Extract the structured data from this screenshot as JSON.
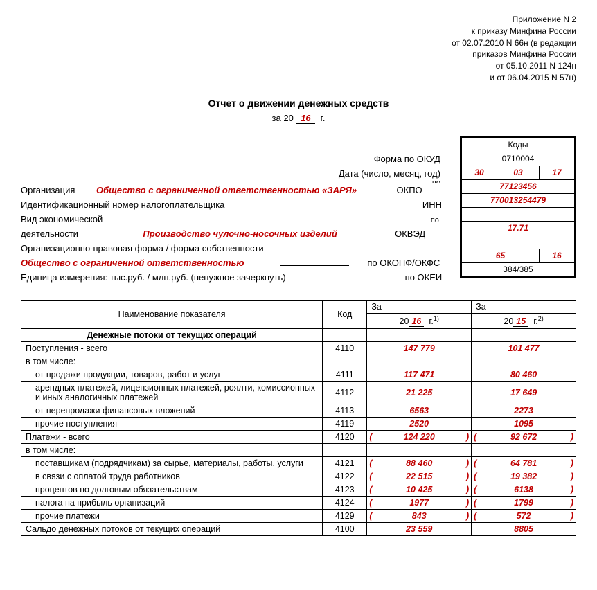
{
  "annex": {
    "l1": "Приложение N 2",
    "l2": "к приказу Минфина России",
    "l3": "от 02.07.2010 N 66н (в редакции",
    "l4": "приказов Минфина России",
    "l5": "от 05.10.2011 N 124н",
    "l6": "и от 06.04.2015 N 57н)"
  },
  "title": {
    "main": "Отчет о движении денежных средств",
    "for_prefix": "за 20",
    "year": "16",
    "for_suffix": "г."
  },
  "meta": {
    "kody": "Коды",
    "form_okud_label": "Форма по ОКУД",
    "form_okud": "0710004",
    "date_label": "Дата (число, месяц, год)",
    "date_d": "30",
    "date_m": "03",
    "date_y": "17",
    "po": "по",
    "org_label": "Организация",
    "org_value": "Общество с ограниченной ответственностью «ЗАРЯ»",
    "okpo_label": "ОКПО",
    "okpo": "77123456",
    "inn_label": "Идентификационный номер налогоплательщика",
    "inn_short": "ИНН",
    "inn": "770013254479",
    "activity_label1": "Вид экономической",
    "activity_label2": "деятельности",
    "activity_value": "Производство чулочно-носочных изделий",
    "okved_label": "ОКВЭД",
    "okved": "17.71",
    "opf_label": "Организационно-правовая форма / форма собственности",
    "opf_value": "Общество с ограниченной ответственностью",
    "okopf_label": "по ОКОПФ/ОКФС",
    "okopf": "65",
    "okfs": "16",
    "unit_label": "Единица измерения: тыс.руб. / млн.руб. (ненужное зачеркнуть)",
    "okei_label": "по ОКЕИ",
    "okei": "384/385"
  },
  "table": {
    "h_name": "Наименование показателя",
    "h_code": "Код",
    "h_za": "За",
    "h_20": "20",
    "year1": "16",
    "year2": "15",
    "h_g1": "г.",
    "sup1": "1)",
    "sup2": "2)",
    "section": "Денежные потоки от текущих операций",
    "rows": [
      {
        "name": "Поступления - всего",
        "code": "4110",
        "v1": "147 779",
        "v2": "101 477",
        "bold": false
      },
      {
        "name": "в том числе:",
        "code": "",
        "v1": "",
        "v2": "",
        "bold": false
      },
      {
        "name": "от продажи продукции, товаров, работ и услуг",
        "code": "4111",
        "v1": "117 471",
        "v2": "80 460",
        "indent": true
      },
      {
        "name": "арендных платежей, лицензионных платежей, роялти, комиссионных и иных аналогичных платежей",
        "code": "4112",
        "v1": "21 225",
        "v2": "17 649",
        "indent": true
      },
      {
        "name": "от перепродажи финансовых вложений",
        "code": "4113",
        "v1": "6563",
        "v2": "2273",
        "indent": true
      },
      {
        "name": "прочие поступления",
        "code": "4119",
        "v1": "2520",
        "v2": "1095",
        "indent": true
      },
      {
        "name": "Платежи - всего",
        "code": "4120",
        "v1": "124 220",
        "v2": "92 672",
        "paren": true
      },
      {
        "name": "в том числе:",
        "code": "",
        "v1": "",
        "v2": ""
      },
      {
        "name": "поставщикам (подрядчикам) за сырье, материалы, работы, услуги",
        "code": "4121",
        "v1": "88 460",
        "v2": "64 781",
        "indent": true,
        "paren": true
      },
      {
        "name": "в связи с оплатой труда работников",
        "code": "4122",
        "v1": "22 515",
        "v2": "19 382",
        "indent": true,
        "paren": true
      },
      {
        "name": "процентов по долговым обязательствам",
        "code": "4123",
        "v1": "10 425",
        "v2": "6138",
        "indent": true,
        "paren": true
      },
      {
        "name": "налога на прибыль организаций",
        "code": "4124",
        "v1": "1977",
        "v2": "1799",
        "indent": true,
        "paren": true
      },
      {
        "name": "прочие платежи",
        "code": "4129",
        "v1": "843",
        "v2": "572",
        "indent": true,
        "paren": true
      },
      {
        "name": "Сальдо денежных потоков от текущих операций",
        "code": "4100",
        "v1": "23 559",
        "v2": "8805"
      }
    ]
  }
}
